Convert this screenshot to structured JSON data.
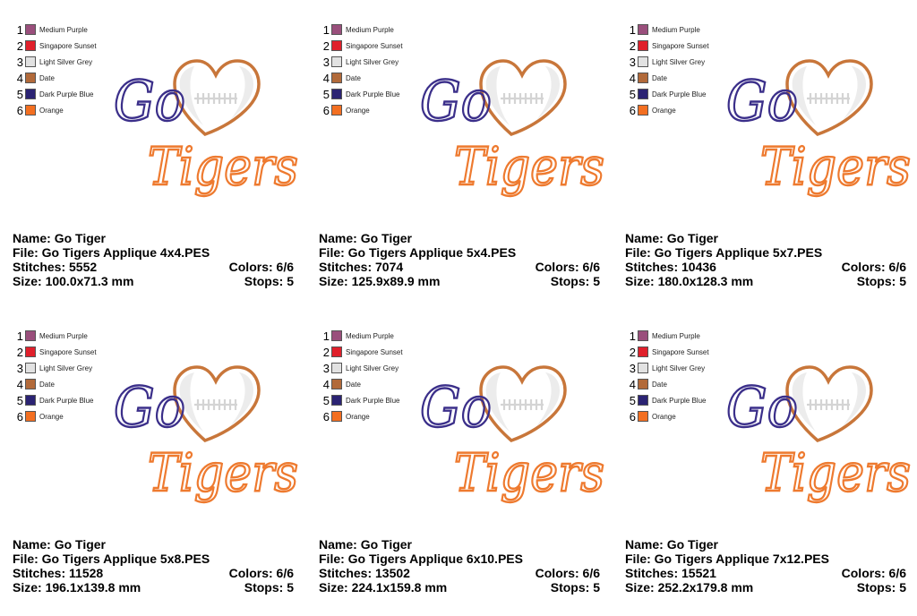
{
  "legend": [
    {
      "num": "1",
      "label": "Medium Purple",
      "color": "#9a4f7c"
    },
    {
      "num": "2",
      "label": "Singapore Sunset",
      "color": "#e0202b"
    },
    {
      "num": "3",
      "label": "Light Silver Grey",
      "color": "#e2e2e2"
    },
    {
      "num": "4",
      "label": "Date",
      "color": "#b26a3a"
    },
    {
      "num": "5",
      "label": "Dark Purple Blue",
      "color": "#2b2373"
    },
    {
      "num": "6",
      "label": "Orange",
      "color": "#f36f21"
    }
  ],
  "labels": {
    "name": "Name:",
    "file": "File:",
    "stitches": "Stitches:",
    "size": "Size:",
    "colors": "Colors:",
    "stops": "Stops:"
  },
  "design_text": {
    "line1": "Go",
    "line2": "Tigers"
  },
  "design_colors": {
    "go": "#3b2f8a",
    "tigers": "#ee7a2f",
    "heart_outline": "#c8763a",
    "ball_fill": "#ececec",
    "laces": "#ffffff"
  },
  "cards": [
    {
      "name": "Go Tiger",
      "file": "Go Tigers Applique 4x4.PES",
      "stitches": "5552",
      "size": "100.0x71.3 mm",
      "colors": "6/6",
      "stops": "5"
    },
    {
      "name": "Go Tiger",
      "file": "Go Tigers Applique 5x4.PES",
      "stitches": "7074",
      "size": "125.9x89.9 mm",
      "colors": "6/6",
      "stops": "5"
    },
    {
      "name": "Go Tiger",
      "file": "Go Tigers Applique 5x7.PES",
      "stitches": "10436",
      "size": "180.0x128.3 mm",
      "colors": "6/6",
      "stops": "5"
    },
    {
      "name": "Go Tiger",
      "file": "Go Tigers Applique 5x8.PES",
      "stitches": "11528",
      "size": "196.1x139.8 mm",
      "colors": "6/6",
      "stops": "5"
    },
    {
      "name": "Go Tiger",
      "file": "Go Tigers Applique 6x10.PES",
      "stitches": "13502",
      "size": "224.1x159.8 mm",
      "colors": "6/6",
      "stops": "5"
    },
    {
      "name": "Go Tiger",
      "file": "Go Tigers Applique 7x12.PES",
      "stitches": "15521",
      "size": "252.2x179.8 mm",
      "colors": "6/6",
      "stops": "5"
    }
  ]
}
